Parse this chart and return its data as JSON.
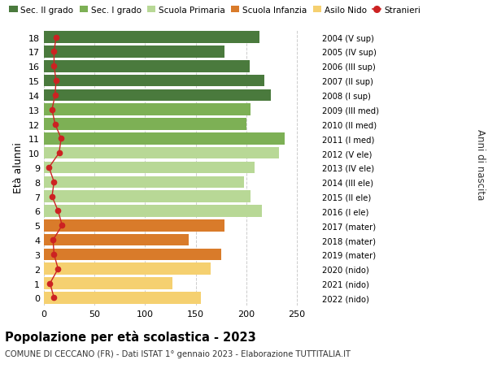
{
  "ages": [
    18,
    17,
    16,
    15,
    14,
    13,
    12,
    11,
    10,
    9,
    8,
    7,
    6,
    5,
    4,
    3,
    2,
    1,
    0
  ],
  "years": [
    "2004 (V sup)",
    "2005 (IV sup)",
    "2006 (III sup)",
    "2007 (II sup)",
    "2008 (I sup)",
    "2009 (III med)",
    "2010 (II med)",
    "2011 (I med)",
    "2012 (V ele)",
    "2013 (IV ele)",
    "2014 (III ele)",
    "2015 (II ele)",
    "2016 (I ele)",
    "2017 (mater)",
    "2018 (mater)",
    "2019 (mater)",
    "2020 (nido)",
    "2021 (nido)",
    "2022 (nido)"
  ],
  "bar_values": [
    213,
    178,
    203,
    218,
    224,
    204,
    200,
    238,
    232,
    208,
    198,
    204,
    215,
    178,
    143,
    175,
    165,
    127,
    155
  ],
  "bar_colors": [
    "#4a7a3d",
    "#4a7a3d",
    "#4a7a3d",
    "#4a7a3d",
    "#4a7a3d",
    "#7db055",
    "#7db055",
    "#7db055",
    "#b8d896",
    "#b8d896",
    "#b8d896",
    "#b8d896",
    "#b8d896",
    "#d97b2a",
    "#d97b2a",
    "#d97b2a",
    "#f5d070",
    "#f5d070",
    "#f5d070"
  ],
  "stranieri_values": [
    12,
    10,
    10,
    12,
    11,
    8,
    11,
    17,
    15,
    5,
    10,
    8,
    14,
    18,
    9,
    10,
    14,
    6,
    10
  ],
  "stranieri_color": "#cc2222",
  "legend_labels": [
    "Sec. II grado",
    "Sec. I grado",
    "Scuola Primaria",
    "Scuola Infanzia",
    "Asilo Nido",
    "Stranieri"
  ],
  "legend_colors": [
    "#4a7a3d",
    "#7db055",
    "#b8d896",
    "#d97b2a",
    "#f5d070",
    "#cc2222"
  ],
  "ylabel": "Età alunni",
  "right_label": "Anni di nascita",
  "title": "Popolazione per età scolastica - 2023",
  "subtitle": "COMUNE DI CECCANO (FR) - Dati ISTAT 1° gennaio 2023 - Elaborazione TUTTITALIA.IT",
  "xlim": [
    0,
    270
  ],
  "ylim": [
    -0.55,
    18.55
  ],
  "xticks": [
    0,
    50,
    100,
    150,
    200,
    250
  ],
  "background_color": "#ffffff",
  "grid_color": "#cccccc",
  "bar_height": 0.82
}
